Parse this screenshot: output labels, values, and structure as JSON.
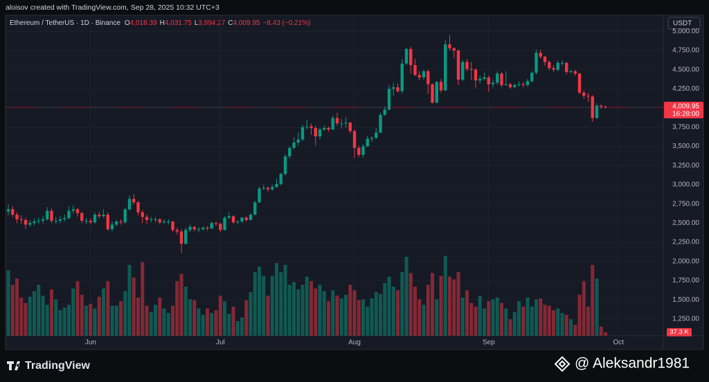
{
  "header": {
    "credit": "aloisov created with TradingView.com, Sep 28, 2025 10:32 UTC+3"
  },
  "footer": {
    "logo": "TradingView",
    "watermark": "@ Aleksandr1981"
  },
  "chart_data": {
    "type": "candlestick",
    "legend": {
      "symbol": "Ethereum / TetherUS · 1D · Binance",
      "items": [
        {
          "key": "O",
          "value": "4,018.39"
        },
        {
          "key": "H",
          "value": "4,031.75"
        },
        {
          "key": "L",
          "value": "3,994.27"
        },
        {
          "key": "C",
          "value": "4,009.95"
        }
      ],
      "change": "−8.43 (−0.21%)"
    },
    "currency": "USDT",
    "last_price_label": "4,009.95",
    "countdown": "16:28:00",
    "up_color": "#089981",
    "down_color": "#f23645",
    "grid": true,
    "xlim": [
      -0.64,
      151.36
    ],
    "xticks": [
      {
        "value": 19,
        "label": "Jun"
      },
      {
        "value": 49,
        "label": "Jul"
      },
      {
        "value": 80,
        "label": "Aug"
      },
      {
        "value": 111,
        "label": "Sep"
      },
      {
        "value": 141,
        "label": "Oct"
      }
    ],
    "ylim": [
      1032,
      5138
    ],
    "yticks": [
      {
        "value": 1250,
        "label": "1,250.00"
      },
      {
        "value": 1500,
        "label": "1,500.00"
      },
      {
        "value": 1750,
        "label": "1,750.00"
      },
      {
        "value": 2000,
        "label": "2,000.00"
      },
      {
        "value": 2250,
        "label": "2,250.00"
      },
      {
        "value": 2500,
        "label": "2,500.00"
      },
      {
        "value": 2750,
        "label": "2,750.00"
      },
      {
        "value": 3000,
        "label": "3,000.00"
      },
      {
        "value": 3250,
        "label": "3,250.00"
      },
      {
        "value": 3500,
        "label": "3,500.00"
      },
      {
        "value": 3750,
        "label": "3,750.00"
      },
      {
        "value": 4000,
        "label": "4,000.00"
      },
      {
        "value": 4250,
        "label": "4,250.00"
      },
      {
        "value": 4500,
        "label": "4,500.00"
      },
      {
        "value": 4750,
        "label": "4,750.00"
      },
      {
        "value": 5000,
        "label": "5,000.00"
      }
    ],
    "open": [
      2650,
      2680,
      2610,
      2550,
      2540,
      2480,
      2500,
      2520,
      2530,
      2550,
      2660,
      2530,
      2530,
      2550,
      2565,
      2660,
      2680,
      2630,
      2530,
      2530,
      2510,
      2610,
      2590,
      2610,
      2420,
      2480,
      2520,
      2510,
      2680,
      2815,
      2770,
      2640,
      2580,
      2540,
      2550,
      2550,
      2510,
      2520,
      2520,
      2410,
      2390,
      2230,
      2410,
      2450,
      2420,
      2420,
      2440,
      2430,
      2500,
      2490,
      2410,
      2570,
      2590,
      2510,
      2520,
      2570,
      2540,
      2610,
      2770,
      2950,
      2960,
      2940,
      2970,
      3010,
      3140,
      3370,
      3480,
      3550,
      3590,
      3750,
      3760,
      3740,
      3630,
      3720,
      3740,
      3720,
      3870,
      3800,
      3800,
      3810,
      3700,
      3480,
      3390,
      3500,
      3600,
      3610,
      3680,
      3910,
      3980,
      4250,
      4270,
      4220,
      4580,
      4770,
      4560,
      4430,
      4400,
      4480,
      4310,
      4070,
      4340,
      4230,
      4830,
      4780,
      4750,
      4370,
      4600,
      4510,
      4500,
      4360,
      4380,
      4400,
      4310,
      4330,
      4450,
      4300,
      4310,
      4270,
      4300,
      4310,
      4300,
      4350,
      4460,
      4720,
      4670,
      4600,
      4520,
      4500,
      4590,
      4590,
      4470,
      4480,
      4450,
      4200,
      4160,
      4150,
      3870,
      4030,
      4018.39
    ],
    "high": [
      2740,
      2720,
      2640,
      2600,
      2570,
      2540,
      2560,
      2570,
      2590,
      2710,
      2690,
      2580,
      2590,
      2610,
      2720,
      2730,
      2700,
      2650,
      2570,
      2560,
      2640,
      2650,
      2680,
      2640,
      2520,
      2540,
      2550,
      2700,
      2860,
      2880,
      2790,
      2670,
      2610,
      2580,
      2580,
      2560,
      2550,
      2550,
      2530,
      2440,
      2420,
      2440,
      2480,
      2460,
      2450,
      2460,
      2460,
      2520,
      2520,
      2500,
      2590,
      2640,
      2600,
      2540,
      2580,
      2590,
      2630,
      2790,
      2980,
      3000,
      2980,
      3000,
      3080,
      3160,
      3400,
      3500,
      3620,
      3680,
      3780,
      3850,
      3800,
      3770,
      3740,
      3770,
      3760,
      3900,
      3940,
      3860,
      3880,
      3820,
      3720,
      3510,
      3530,
      3640,
      3630,
      3740,
      3940,
      4020,
      4300,
      4330,
      4320,
      4640,
      4790,
      4800,
      4640,
      4480,
      4500,
      4500,
      4320,
      4350,
      4380,
      4890,
      4950,
      4790,
      4760,
      4630,
      4640,
      4600,
      4520,
      4420,
      4460,
      4420,
      4370,
      4480,
      4470,
      4480,
      4330,
      4320,
      4350,
      4340,
      4380,
      4480,
      4760,
      4760,
      4680,
      4620,
      4560,
      4620,
      4620,
      4600,
      4500,
      4500,
      4460,
      4230,
      4200,
      4170,
      4060,
      4050,
      4031.75
    ],
    "low": [
      2600,
      2580,
      2500,
      2490,
      2420,
      2450,
      2470,
      2490,
      2500,
      2530,
      2500,
      2490,
      2500,
      2520,
      2550,
      2620,
      2580,
      2500,
      2490,
      2480,
      2490,
      2560,
      2570,
      2400,
      2390,
      2460,
      2480,
      2490,
      2660,
      2740,
      2600,
      2500,
      2490,
      2510,
      2510,
      2480,
      2490,
      2480,
      2380,
      2350,
      2110,
      2220,
      2380,
      2390,
      2380,
      2400,
      2400,
      2420,
      2460,
      2380,
      2400,
      2550,
      2490,
      2480,
      2500,
      2520,
      2530,
      2600,
      2760,
      2930,
      2910,
      2920,
      2960,
      2990,
      3120,
      3340,
      3460,
      3510,
      3570,
      3720,
      3650,
      3510,
      3590,
      3700,
      3690,
      3710,
      3770,
      3730,
      3740,
      3670,
      3350,
      3360,
      3350,
      3490,
      3560,
      3600,
      3670,
      3900,
      3970,
      4160,
      4200,
      4190,
      4560,
      4450,
      4420,
      4360,
      4370,
      4180,
      4060,
      4060,
      4200,
      4220,
      4750,
      4650,
      4300,
      4350,
      4480,
      4360,
      4260,
      4320,
      4360,
      4210,
      4260,
      4300,
      4270,
      4290,
      4250,
      4270,
      4280,
      4270,
      4280,
      4330,
      4440,
      4640,
      4550,
      4490,
      4470,
      4480,
      4550,
      4440,
      4450,
      4420,
      4180,
      4120,
      4080,
      3820,
      3860,
      3990,
      3994.27
    ],
    "close": [
      2680,
      2610,
      2550,
      2540,
      2480,
      2500,
      2520,
      2530,
      2550,
      2660,
      2530,
      2530,
      2550,
      2565,
      2660,
      2680,
      2630,
      2530,
      2530,
      2510,
      2610,
      2590,
      2610,
      2420,
      2480,
      2520,
      2510,
      2680,
      2815,
      2770,
      2640,
      2580,
      2540,
      2550,
      2550,
      2510,
      2520,
      2520,
      2410,
      2390,
      2230,
      2410,
      2450,
      2420,
      2420,
      2440,
      2430,
      2500,
      2490,
      2410,
      2570,
      2590,
      2510,
      2520,
      2570,
      2540,
      2610,
      2770,
      2950,
      2960,
      2940,
      2970,
      3010,
      3140,
      3370,
      3480,
      3550,
      3590,
      3750,
      3760,
      3740,
      3630,
      3720,
      3740,
      3720,
      3870,
      3800,
      3800,
      3810,
      3700,
      3480,
      3390,
      3500,
      3600,
      3610,
      3680,
      3910,
      3980,
      4250,
      4270,
      4220,
      4580,
      4770,
      4560,
      4430,
      4400,
      4480,
      4310,
      4070,
      4340,
      4230,
      4830,
      4780,
      4750,
      4370,
      4600,
      4510,
      4500,
      4360,
      4380,
      4400,
      4310,
      4330,
      4450,
      4300,
      4310,
      4270,
      4300,
      4310,
      4300,
      4350,
      4460,
      4720,
      4670,
      4600,
      4520,
      4500,
      4590,
      4590,
      4470,
      4480,
      4450,
      4200,
      4160,
      4150,
      3870,
      4030,
      4018.39,
      4009.95
    ],
    "volume": {
      "lim": [
        0,
        900
      ],
      "last_value_label": "37.3 K",
      "values": [
        720,
        560,
        630,
        420,
        360,
        430,
        490,
        560,
        440,
        340,
        510,
        400,
        280,
        310,
        340,
        520,
        600,
        450,
        330,
        350,
        300,
        430,
        520,
        600,
        330,
        330,
        380,
        490,
        780,
        640,
        420,
        810,
        330,
        260,
        340,
        420,
        300,
        250,
        330,
        600,
        680,
        540,
        400,
        390,
        300,
        230,
        300,
        250,
        280,
        440,
        380,
        240,
        320,
        160,
        200,
        390,
        480,
        700,
        760,
        660,
        440,
        660,
        800,
        700,
        780,
        560,
        590,
        510,
        560,
        650,
        600,
        520,
        560,
        490,
        380,
        500,
        440,
        410,
        450,
        560,
        500,
        390,
        400,
        320,
        410,
        480,
        460,
        580,
        650,
        540,
        500,
        700,
        870,
        690,
        540,
        400,
        340,
        560,
        690,
        400,
        660,
        880,
        650,
        620,
        700,
        420,
        500,
        360,
        320,
        440,
        300,
        380,
        400,
        420,
        360,
        300,
        180,
        260,
        380,
        320,
        420,
        320,
        400,
        410,
        340,
        330,
        280,
        300,
        250,
        230,
        180,
        120,
        450,
        600,
        320,
        780,
        630,
        100,
        37.3
      ]
    }
  }
}
